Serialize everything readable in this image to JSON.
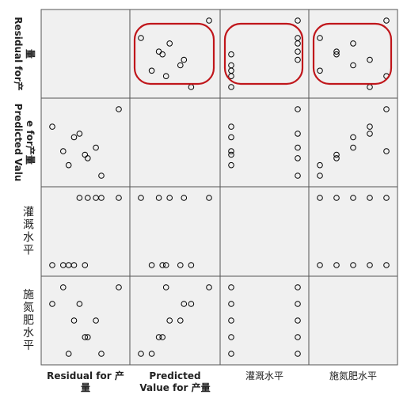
{
  "chart_data": {
    "type": "scatter-matrix",
    "variables": [
      {
        "key": "residual",
        "label_lines": [
          "Residual for 产",
          "量"
        ],
        "row_label_lines": [
          "量",
          "Residual for产"
        ]
      },
      {
        "key": "predicted",
        "label_lines": [
          "Predicted",
          "Value for 产量"
        ],
        "row_label_lines": [
          "e for产量",
          "Predicted Valu"
        ]
      },
      {
        "key": "irrigation",
        "label_lines": [
          "灌溉水平"
        ],
        "row_label_lines": [
          "灌",
          "溉",
          "水",
          "平"
        ]
      },
      {
        "key": "nitrogen",
        "label_lines": [
          "施氮肥水平"
        ],
        "row_label_lines": [
          "施",
          "氮",
          "肥",
          "水",
          "平"
        ]
      }
    ],
    "observations": [
      {
        "residual": 0.62,
        "predicted": 1.0,
        "irrigation": 2,
        "nitrogen": 5
      },
      {
        "residual": -0.6,
        "predicted": 0.5,
        "irrigation": 1,
        "nitrogen": 4
      },
      {
        "residual": -0.2,
        "predicted": 0.2,
        "irrigation": 1,
        "nitrogen": 3
      },
      {
        "residual": 0.0,
        "predicted": -0.3,
        "irrigation": 1,
        "nitrogen": 2
      },
      {
        "residual": -0.3,
        "predicted": -0.6,
        "irrigation": 1,
        "nitrogen": 1
      },
      {
        "residual": -0.1,
        "predicted": 0.3,
        "irrigation": 2,
        "nitrogen": 4
      },
      {
        "residual": 0.2,
        "predicted": -0.1,
        "irrigation": 2,
        "nitrogen": 3
      },
      {
        "residual": 0.05,
        "predicted": -0.4,
        "irrigation": 2,
        "nitrogen": 2
      },
      {
        "residual": 0.3,
        "predicted": -0.9,
        "irrigation": 2,
        "nitrogen": 1
      },
      {
        "residual": -0.4,
        "predicted": -0.2,
        "irrigation": 1,
        "nitrogen": 5
      }
    ],
    "highlight_ovals": [
      {
        "row": 0,
        "col": 1,
        "color": "#c0161b"
      },
      {
        "row": 0,
        "col": 2,
        "color": "#c0161b"
      },
      {
        "row": 0,
        "col": 3,
        "color": "#c0161b"
      }
    ],
    "colors": {
      "panel_bg": "#f0f0f0",
      "panel_border": "#555555",
      "marker_stroke": "#000000",
      "oval": "#c0161b"
    },
    "grid": false,
    "legend": "none"
  }
}
